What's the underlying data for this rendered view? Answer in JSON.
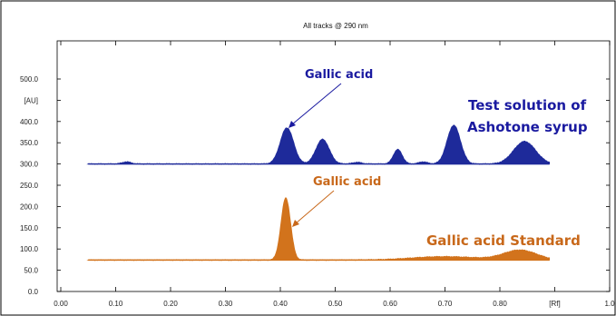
{
  "chart_data": {
    "type": "area",
    "title": "All tracks @ 290 nm",
    "ylabel": "[AU]",
    "xlabel": "[Rf]",
    "xlim": [
      0.0,
      1.0
    ],
    "ylim": [
      0,
      550
    ],
    "x_ticks": [
      "0.00",
      "0.10",
      "0.20",
      "0.30",
      "0.40",
      "0.50",
      "0.60",
      "0.70",
      "0.80",
      "[Rf]",
      "1.0"
    ],
    "y_ticks": [
      "0.0",
      "50.0",
      "100.0",
      "150.0",
      "200.0",
      "250.0",
      "300.0",
      "350.0",
      "400.0",
      "[AU]",
      "500.0"
    ],
    "series": [
      {
        "name": "Test solution of Ashotone syrup",
        "color": "#1e2a9a",
        "baseline": 300,
        "x_range": [
          0.05,
          0.89
        ],
        "peaks": [
          {
            "rf": 0.12,
            "height": 305
          },
          {
            "rf": 0.412,
            "height": 385
          },
          {
            "rf": 0.477,
            "height": 358
          },
          {
            "rf": 0.54,
            "height": 304
          },
          {
            "rf": 0.614,
            "height": 334
          },
          {
            "rf": 0.66,
            "height": 305
          },
          {
            "rf": 0.716,
            "height": 391
          },
          {
            "rf": 0.845,
            "height": 353
          }
        ]
      },
      {
        "name": "Gallic acid Standard",
        "color": "#d2731c",
        "baseline": 74,
        "x_range": [
          0.05,
          0.89
        ],
        "peaks": [
          {
            "rf": 0.41,
            "height": 220
          },
          {
            "rf": 0.7,
            "height": 82
          },
          {
            "rf": 0.837,
            "height": 97
          }
        ]
      }
    ],
    "annotations": [
      {
        "text": "Gallic acid",
        "series": 0,
        "style": "blue"
      },
      {
        "text": "Test solution of",
        "style": "blue"
      },
      {
        "text": "Ashotone syrup",
        "style": "blue"
      },
      {
        "text": "Gallic acid",
        "series": 1,
        "style": "orange"
      },
      {
        "text": "Gallic acid Standard",
        "style": "orange"
      }
    ]
  }
}
